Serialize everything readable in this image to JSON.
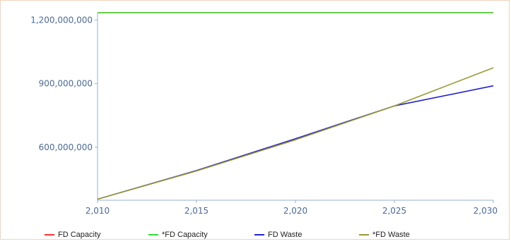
{
  "chart_data": {
    "type": "line",
    "title": "",
    "xlabel": "",
    "ylabel": "",
    "xlim": [
      2010,
      2030
    ],
    "ylim": [
      350000000,
      1235000000
    ],
    "x_ticks": [
      {
        "value": 2010,
        "label": "2,010"
      },
      {
        "value": 2015,
        "label": "2,015"
      },
      {
        "value": 2020,
        "label": "2,020"
      },
      {
        "value": 2025,
        "label": "2,025"
      },
      {
        "value": 2030,
        "label": "2,030"
      }
    ],
    "y_ticks": [
      {
        "value": 600000000,
        "label": "600,000,000"
      },
      {
        "value": 900000000,
        "label": "900,000,000"
      },
      {
        "value": 1200000000,
        "label": "1,200,000,000"
      }
    ],
    "grid": false,
    "legend_position": "bottom",
    "series": [
      {
        "name": "FD Capacity",
        "color": "#ff3333",
        "x": [
          2010,
          2030
        ],
        "y": [
          1235000000,
          1235000000
        ]
      },
      {
        "name": "*FD Capacity",
        "color": "#33dd33",
        "x": [
          2010,
          2030
        ],
        "y": [
          1235000000,
          1235000000
        ]
      },
      {
        "name": "FD Waste",
        "color": "#2222cc",
        "x": [
          2010,
          2015,
          2020,
          2025,
          2030
        ],
        "y": [
          355000000,
          490000000,
          640000000,
          795000000,
          890000000
        ]
      },
      {
        "name": "*FD Waste",
        "color": "#999933",
        "x": [
          2010,
          2015,
          2020,
          2025,
          2030
        ],
        "y": [
          355000000,
          488000000,
          635000000,
          795000000,
          975000000
        ]
      }
    ]
  }
}
